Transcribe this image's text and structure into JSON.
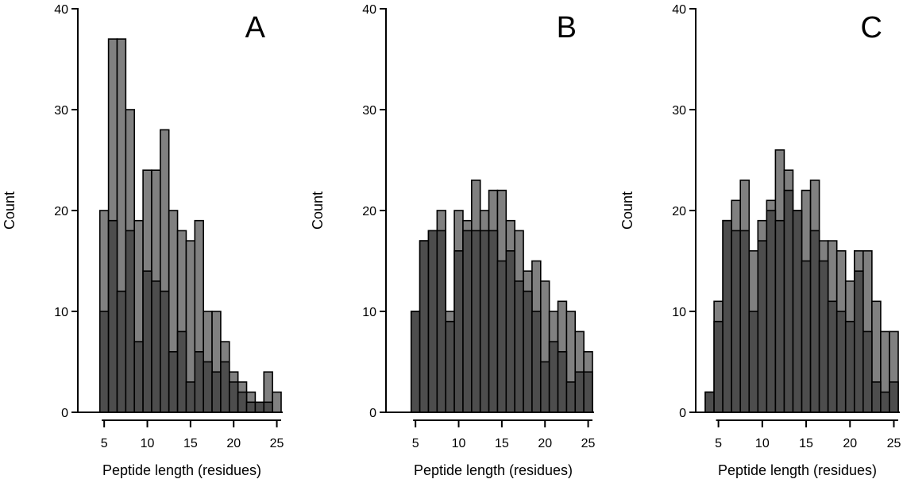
{
  "chart_data": [
    {
      "type": "bar",
      "stacked": "overlay",
      "panel_label": "A",
      "xlabel": "Peptide length (residues)",
      "ylabel": "Count",
      "xlim": [
        2.5,
        25.5
      ],
      "ylim": [
        0,
        40
      ],
      "xticks": [
        5,
        10,
        15,
        20,
        25
      ],
      "yticks": [
        0,
        10,
        20,
        30,
        40
      ],
      "x": [
        5,
        6,
        7,
        8,
        9,
        10,
        11,
        12,
        13,
        14,
        15,
        16,
        17,
        18,
        19,
        20,
        21,
        22,
        23,
        24,
        25
      ],
      "series": [
        {
          "values": [
            20,
            37,
            37,
            30,
            19,
            24,
            24,
            28,
            20,
            18,
            17,
            19,
            10,
            10,
            7,
            4,
            3,
            2,
            1,
            4,
            2
          ]
        },
        {
          "values": [
            10,
            19,
            12,
            18,
            7,
            14,
            13,
            12,
            6,
            8,
            3,
            6,
            5,
            4,
            5,
            3,
            2,
            1,
            1,
            1,
            0
          ]
        }
      ],
      "colors": {
        "total": "#808080",
        "subset": "#4d4d4d"
      },
      "grid": false
    },
    {
      "type": "bar",
      "stacked": "overlay",
      "panel_label": "B",
      "xlabel": "Peptide length (residues)",
      "ylabel": "Count",
      "xlim": [
        2.5,
        25.5
      ],
      "ylim": [
        0,
        40
      ],
      "xticks": [
        5,
        10,
        15,
        20,
        25
      ],
      "yticks": [
        0,
        10,
        20,
        30,
        40
      ],
      "x": [
        5,
        6,
        7,
        8,
        9,
        10,
        11,
        12,
        13,
        14,
        15,
        16,
        17,
        18,
        19,
        20,
        21,
        22,
        23,
        24,
        25
      ],
      "series": [
        {
          "values": [
            10,
            17,
            18,
            20,
            10,
            20,
            19,
            23,
            20,
            22,
            22,
            19,
            18,
            14,
            15,
            13,
            10,
            11,
            10,
            8,
            6
          ]
        },
        {
          "values": [
            10,
            17,
            18,
            18,
            9,
            16,
            18,
            18,
            18,
            18,
            15,
            16,
            13,
            12,
            10,
            5,
            7,
            6,
            3,
            4,
            4
          ]
        }
      ],
      "colors": {
        "total": "#808080",
        "subset": "#4d4d4d"
      },
      "grid": false
    },
    {
      "type": "bar",
      "stacked": "overlay",
      "panel_label": "C",
      "xlabel": "Peptide length (residues)",
      "ylabel": "Count",
      "xlim": [
        2.5,
        25.5
      ],
      "ylim": [
        0,
        40
      ],
      "xticks": [
        5,
        10,
        15,
        20,
        25
      ],
      "yticks": [
        0,
        10,
        20,
        30,
        40
      ],
      "x": [
        4,
        5,
        6,
        7,
        8,
        9,
        10,
        11,
        12,
        13,
        14,
        15,
        16,
        17,
        18,
        19,
        20,
        21,
        22,
        23,
        24,
        25
      ],
      "series": [
        {
          "values": [
            2,
            11,
            19,
            21,
            23,
            16,
            19,
            21,
            26,
            24,
            20,
            22,
            23,
            17,
            17,
            16,
            13,
            16,
            16,
            11,
            8,
            8
          ]
        },
        {
          "values": [
            2,
            9,
            19,
            18,
            18,
            10,
            17,
            20,
            19,
            22,
            20,
            15,
            18,
            15,
            11,
            10,
            9,
            14,
            8,
            3,
            2,
            3
          ]
        }
      ],
      "colors": {
        "total": "#808080",
        "subset": "#4d4d4d"
      },
      "grid": false
    }
  ]
}
